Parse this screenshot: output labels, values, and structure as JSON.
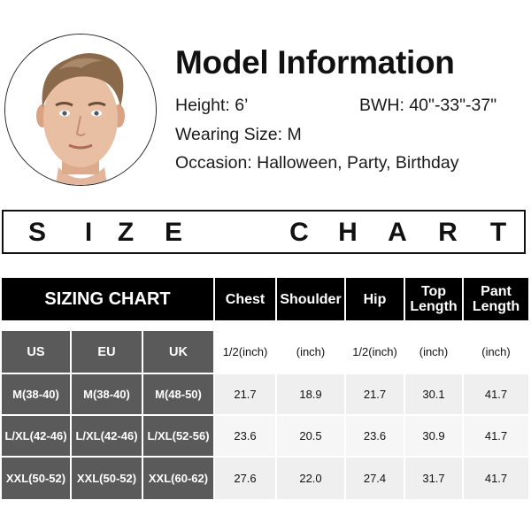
{
  "model": {
    "title": "Model Information",
    "height": "Height: 6’",
    "bwh": "BWH: 40\"-33\"-37\"",
    "wearing_size": "Wearing Size: M",
    "occasion": "Occasion: Halloween, Party, Birthday"
  },
  "banner": {
    "letters": [
      "S",
      "I",
      "Z",
      "E",
      "C",
      "H",
      "A",
      "R",
      "T"
    ]
  },
  "table": {
    "title": "SIZING CHART",
    "measure_headers": [
      "Chest",
      "Shoulder",
      "Hip",
      "Top Length",
      "Pant Length"
    ],
    "size_headers": [
      "US",
      "EU",
      "UK"
    ],
    "units": [
      "1/2(inch)",
      "(inch)",
      "1/2(inch)",
      "(inch)",
      "(inch)"
    ],
    "rows": [
      {
        "us": "M(38-40)",
        "eu": "M(38-40)",
        "uk": "M(48-50)",
        "values": [
          "21.7",
          "18.9",
          "21.7",
          "30.1",
          "41.7"
        ]
      },
      {
        "us": "L/XL(42-46)",
        "eu": "L/XL(42-46)",
        "uk": "L/XL(52-56)",
        "values": [
          "23.6",
          "20.5",
          "23.6",
          "30.9",
          "41.7"
        ]
      },
      {
        "us": "XXL(50-52)",
        "eu": "XXL(50-52)",
        "uk": "XXL(60-62)",
        "values": [
          "27.6",
          "22.0",
          "27.4",
          "31.7",
          "41.7"
        ]
      }
    ]
  }
}
